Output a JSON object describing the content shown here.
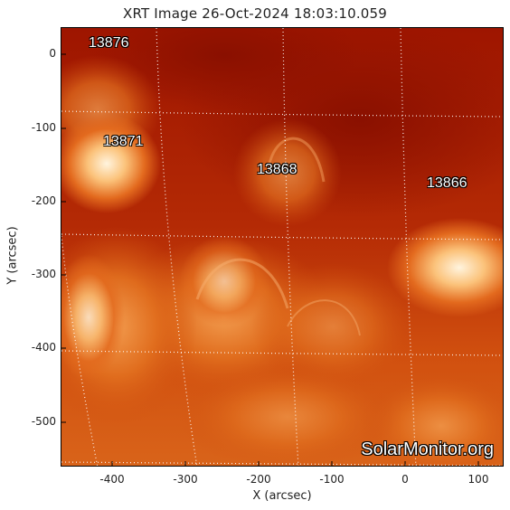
{
  "title": "XRT Image 26-Oct-2024 18:03:10.059",
  "xaxis": {
    "label": "X (arcsec)",
    "ticks": [
      "-400",
      "-300",
      "-200",
      "-100",
      "0",
      "100"
    ]
  },
  "yaxis": {
    "label": "Y (arcsec)",
    "ticks": [
      "0",
      "-100",
      "-200",
      "-300",
      "-400",
      "-500"
    ]
  },
  "active_regions": [
    {
      "id": "13876"
    },
    {
      "id": "13871"
    },
    {
      "id": "13868"
    },
    {
      "id": "13866"
    }
  ],
  "watermark": "SolarMonitor.org",
  "colors": {
    "dark": "#9a1400",
    "mid": "#c23a0a",
    "bright": "#f08a34",
    "hot": "#fff1d6"
  }
}
